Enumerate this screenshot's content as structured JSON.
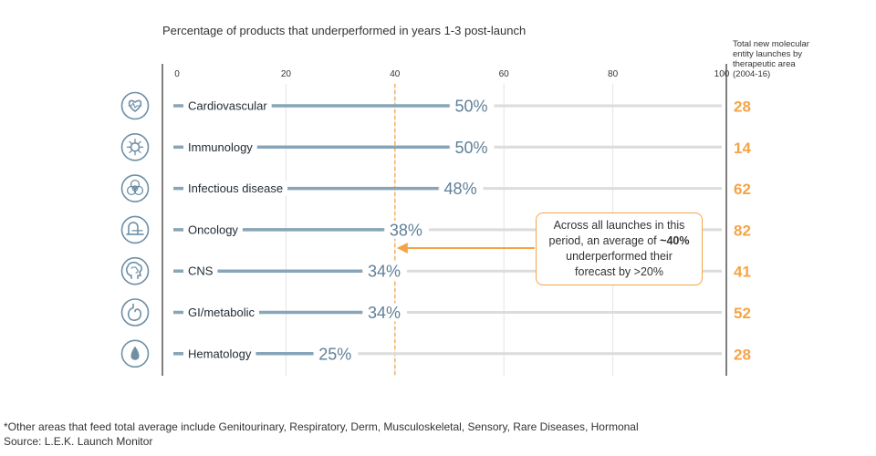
{
  "chart_data": {
    "type": "bar",
    "title": "Percentage of products that underperformed in years 1-3 post-launch",
    "x_ticks": [
      "0",
      "20",
      "40",
      "60",
      "80",
      "100"
    ],
    "xlim": [
      0,
      100
    ],
    "grid": true,
    "categories": [
      "Cardiovascular",
      "Immunology",
      "Infectious disease",
      "Oncology",
      "CNS",
      "GI/metabolic",
      "Hematology"
    ],
    "values": [
      50,
      50,
      48,
      38,
      34,
      34,
      25
    ],
    "value_labels": [
      "50%",
      "50%",
      "48%",
      "38%",
      "34%",
      "34%",
      "25%"
    ],
    "icons": [
      "heart-icon",
      "virus-icon",
      "biohazard-icon",
      "scanner-icon",
      "brain-icon",
      "stomach-icon",
      "blood-drop-icon"
    ],
    "average_line": 40,
    "right_column": {
      "header": [
        "Total new molecular",
        "entity launches by",
        "therapeutic area",
        "(2004-16)"
      ],
      "values": [
        "28",
        "14",
        "62",
        "82",
        "41",
        "52",
        "28"
      ]
    },
    "annotation": {
      "line1": "Across all launches in this",
      "line2a": "period, an average of ",
      "line2b": "~40%",
      "line3": "underperformed their",
      "line4": "forecast by >20%"
    }
  },
  "colors": {
    "bar": "#87a5b8",
    "track": "#dcdcdc",
    "value_text": "#5f8098",
    "accent": "#f5a445",
    "axis": "#555555",
    "grid": "#e4e4e4",
    "icon": "#6f8fa6"
  },
  "footnote": "*Other areas that feed total average include Genitourinary, Respiratory, Derm, Musculoskeletal, Sensory, Rare Diseases, Hormonal",
  "source": "Source: L.E.K. Launch Monitor"
}
